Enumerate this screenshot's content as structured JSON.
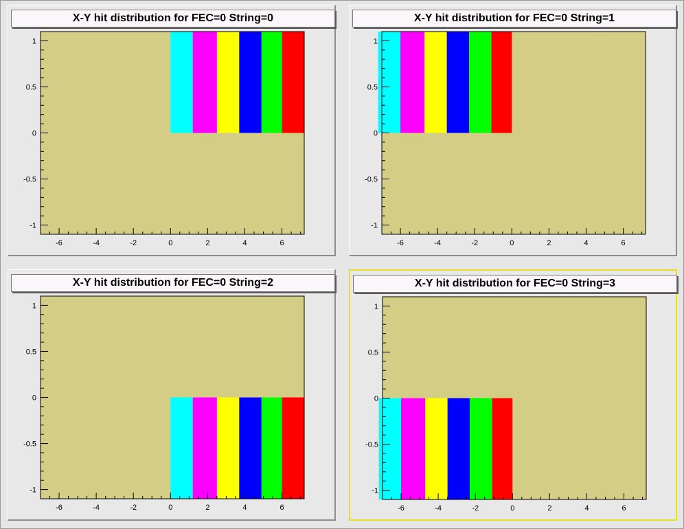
{
  "colors": {
    "frame": "#d4cd85",
    "stripes": [
      "#00ffff",
      "#ff00ff",
      "#ffff00",
      "#0000ff",
      "#00ff00",
      "#ff0000"
    ]
  },
  "chart_data": [
    {
      "type": "heatmap",
      "title": "X-Y hit distribution for FEC=0 String=0",
      "xlim": [
        -7,
        7.2
      ],
      "ylim": [
        -1.1,
        1.1
      ],
      "xticks": [
        "-6",
        "-4",
        "-2",
        "0",
        "2",
        "4",
        "6"
      ],
      "yticks": [
        "-1",
        "-0.5",
        "0",
        "0.5",
        "1"
      ],
      "region": {
        "x": [
          0,
          7.2
        ],
        "y": [
          0,
          1.1
        ]
      },
      "bands": [
        {
          "color": "cyan",
          "x": [
            0,
            1.2
          ]
        },
        {
          "color": "magenta",
          "x": [
            1.2,
            2.5
          ]
        },
        {
          "color": "yellow",
          "x": [
            2.5,
            3.7
          ]
        },
        {
          "color": "blue",
          "x": [
            3.7,
            4.9
          ]
        },
        {
          "color": "green",
          "x": [
            4.9,
            6.0
          ]
        },
        {
          "color": "red",
          "x": [
            6.0,
            7.2
          ]
        }
      ]
    },
    {
      "type": "heatmap",
      "title": "X-Y hit distribution for FEC=0 String=1",
      "xlim": [
        -7,
        7.2
      ],
      "ylim": [
        -1.1,
        1.1
      ],
      "xticks": [
        "-6",
        "-4",
        "-2",
        "0",
        "2",
        "4",
        "6"
      ],
      "yticks": [
        "-1",
        "-0.5",
        "0",
        "0.5",
        "1"
      ],
      "region": {
        "x": [
          -7.2,
          0
        ],
        "y": [
          0,
          1.1
        ]
      },
      "bands": [
        {
          "color": "cyan",
          "x": [
            -7.2,
            -6.0
          ]
        },
        {
          "color": "magenta",
          "x": [
            -6.0,
            -4.7
          ]
        },
        {
          "color": "yellow",
          "x": [
            -4.7,
            -3.5
          ]
        },
        {
          "color": "blue",
          "x": [
            -3.5,
            -2.3
          ]
        },
        {
          "color": "green",
          "x": [
            -2.3,
            -1.1
          ]
        },
        {
          "color": "red",
          "x": [
            -1.1,
            0
          ]
        }
      ]
    },
    {
      "type": "heatmap",
      "title": "X-Y hit distribution for FEC=0 String=2",
      "xlim": [
        -7,
        7.2
      ],
      "ylim": [
        -1.1,
        1.1
      ],
      "xticks": [
        "-6",
        "-4",
        "-2",
        "0",
        "2",
        "4",
        "6"
      ],
      "yticks": [
        "-1",
        "-0.5",
        "0",
        "0.5",
        "1"
      ],
      "region": {
        "x": [
          0,
          7.2
        ],
        "y": [
          -1.1,
          0
        ]
      },
      "bands": [
        {
          "color": "cyan",
          "x": [
            0,
            1.2
          ]
        },
        {
          "color": "magenta",
          "x": [
            1.2,
            2.5
          ]
        },
        {
          "color": "yellow",
          "x": [
            2.5,
            3.7
          ]
        },
        {
          "color": "blue",
          "x": [
            3.7,
            4.9
          ]
        },
        {
          "color": "green",
          "x": [
            4.9,
            6.0
          ]
        },
        {
          "color": "red",
          "x": [
            6.0,
            7.2
          ]
        }
      ]
    },
    {
      "type": "heatmap",
      "title": "X-Y hit distribution for FEC=0 String=3",
      "xlim": [
        -7,
        7.2
      ],
      "ylim": [
        -1.1,
        1.1
      ],
      "xticks": [
        "-6",
        "-4",
        "-2",
        "0",
        "2",
        "4",
        "6"
      ],
      "yticks": [
        "-1",
        "-0.5",
        "0",
        "0.5",
        "1"
      ],
      "region": {
        "x": [
          -7.2,
          0
        ],
        "y": [
          -1.1,
          0
        ]
      },
      "bands": [
        {
          "color": "cyan",
          "x": [
            -7.2,
            -6.0
          ]
        },
        {
          "color": "magenta",
          "x": [
            -6.0,
            -4.7
          ]
        },
        {
          "color": "yellow",
          "x": [
            -4.7,
            -3.5
          ]
        },
        {
          "color": "blue",
          "x": [
            -3.5,
            -2.3
          ]
        },
        {
          "color": "green",
          "x": [
            -2.3,
            -1.1
          ]
        },
        {
          "color": "red",
          "x": [
            -1.1,
            0
          ]
        }
      ]
    }
  ]
}
